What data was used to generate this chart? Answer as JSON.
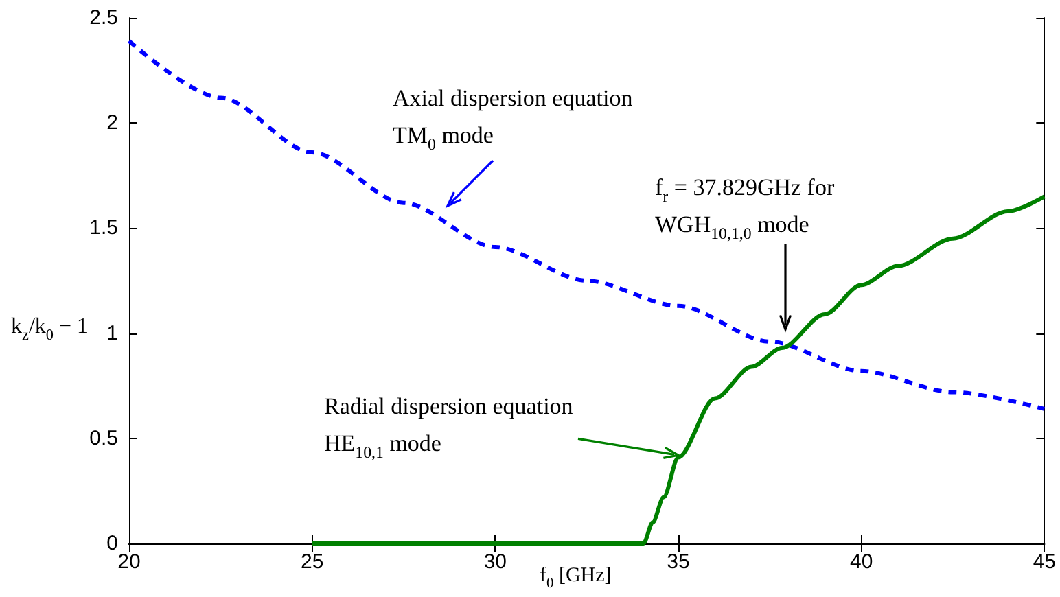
{
  "chart_data": {
    "type": "line",
    "xlabel": "f$_{0}$ [GHz]",
    "ylabel": "k$_{z}$/k$_{0}$ − 1",
    "xlim": [
      20,
      45
    ],
    "xticks": [
      20,
      25,
      30,
      35,
      40,
      45
    ],
    "ylim": [
      0,
      2.5
    ],
    "yticks": [
      0,
      0.5,
      1,
      1.5,
      2,
      2.5
    ],
    "grid": false,
    "marker": "none",
    "series": [
      {
        "color": "#0000ff",
        "line_style": "dashed",
        "x": [
          20,
          22.5,
          25,
          27.5,
          30,
          32.5,
          35,
          37.5,
          40,
          42.5,
          45
        ],
        "values": [
          2.39,
          2.12,
          1.86,
          1.62,
          1.41,
          1.25,
          1.13,
          0.96,
          0.82,
          0.72,
          0.64
        ]
      },
      {
        "color": "#008000",
        "line_style": "solid",
        "x": [
          25,
          34.05,
          34.3,
          34.6,
          35,
          36,
          37,
          37.83,
          39,
          40,
          41,
          42.5,
          44,
          45
        ],
        "values": [
          0,
          0,
          0.1,
          0.22,
          0.41,
          0.69,
          0.84,
          0.93,
          1.09,
          1.23,
          1.32,
          1.45,
          1.58,
          1.65
        ]
      }
    ],
    "annotations": [
      "Axial dispersion equation\nTM$_{0}$ mode",
      "f$_{r}$ = 37.829GHz for\nWGH$_{10,1,0}$ mode",
      {
        "text": "Radial dispersion equation\nHE$_{10,1}$ mode",
        "x": 35,
        "y": 0.42
      }
    ]
  }
}
